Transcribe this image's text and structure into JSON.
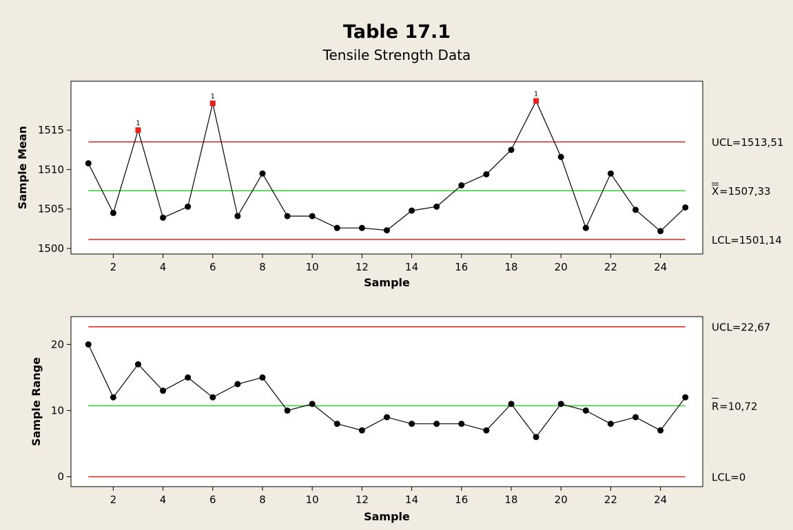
{
  "title": "Table 17.1",
  "subtitle": "Tensile Strength Data",
  "colors": {
    "background": "#f0ece2",
    "plot_background": "#ffffff",
    "limit_line": "#e8201c",
    "center_line": "#2fd12f",
    "data_line": "#000000",
    "out_of_control": "#e8201c"
  },
  "chart_data": [
    {
      "type": "line",
      "name": "xbar",
      "ylabel": "Sample Mean",
      "xlabel": "Sample",
      "x": [
        1,
        2,
        3,
        4,
        5,
        6,
        7,
        8,
        9,
        10,
        11,
        12,
        13,
        14,
        15,
        16,
        17,
        18,
        19,
        20,
        21,
        22,
        23,
        24,
        25
      ],
      "values": [
        1510.8,
        1504.5,
        1515.0,
        1503.9,
        1505.3,
        1518.4,
        1504.1,
        1509.5,
        1504.1,
        1504.1,
        1502.6,
        1502.6,
        1502.3,
        1504.8,
        1505.3,
        1508.0,
        1509.4,
        1512.5,
        1518.7,
        1511.6,
        1502.6,
        1509.5,
        1504.9,
        1502.2,
        1505.2
      ],
      "out_of_control": [
        3,
        6,
        19
      ],
      "flag_label": "1",
      "xlim": [
        0.3,
        25.7
      ],
      "ylim": [
        1499.3,
        1521.2
      ],
      "xticks": [
        2,
        4,
        6,
        8,
        10,
        12,
        14,
        16,
        18,
        20,
        22,
        24
      ],
      "yticks": [
        1500,
        1505,
        1510,
        1515
      ],
      "limits": {
        "ucl": {
          "value": 1513.51,
          "label": "UCL=1513,51"
        },
        "center": {
          "value": 1507.33,
          "label": "=1507,33",
          "symbol": "X",
          "bar": "double"
        },
        "lcl": {
          "value": 1501.14,
          "label": "LCL=1501,14"
        }
      }
    },
    {
      "type": "line",
      "name": "range",
      "ylabel": "Sample Range",
      "xlabel": "Sample",
      "x": [
        1,
        2,
        3,
        4,
        5,
        6,
        7,
        8,
        9,
        10,
        11,
        12,
        13,
        14,
        15,
        16,
        17,
        18,
        19,
        20,
        21,
        22,
        23,
        24,
        25
      ],
      "values": [
        20,
        12,
        17,
        13,
        15,
        12,
        14,
        15,
        10,
        11,
        8,
        7,
        9,
        8,
        8,
        8,
        7,
        11,
        6,
        11,
        10,
        8,
        9,
        7,
        12
      ],
      "xlim": [
        0.3,
        25.7
      ],
      "ylim": [
        -1.5,
        24.2
      ],
      "xticks": [
        2,
        4,
        6,
        8,
        10,
        12,
        14,
        16,
        18,
        20,
        22,
        24
      ],
      "yticks": [
        0,
        10,
        20
      ],
      "limits": {
        "ucl": {
          "value": 22.67,
          "label": "UCL=22,67"
        },
        "center": {
          "value": 10.72,
          "label": "=10,72",
          "symbol": "R",
          "bar": "single"
        },
        "lcl": {
          "value": 0,
          "label": "LCL=0"
        }
      }
    }
  ]
}
